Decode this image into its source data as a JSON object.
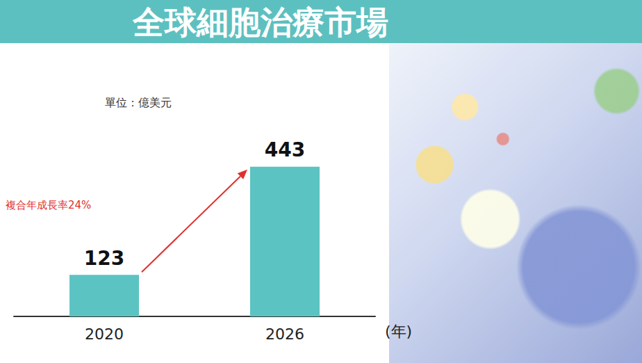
{
  "chart_data": {
    "type": "bar",
    "title": "全球細胞治療市場",
    "subtitle": "單位：億美元",
    "categories": [
      "2020",
      "2026"
    ],
    "values": [
      123,
      443
    ],
    "color": "#5cc3c3",
    "x_label": "(年)",
    "annotation": "複合年成長率24%",
    "ylim": [
      0,
      500
    ],
    "data_labels": true,
    "tick_labels": "x",
    "grid": false
  }
}
